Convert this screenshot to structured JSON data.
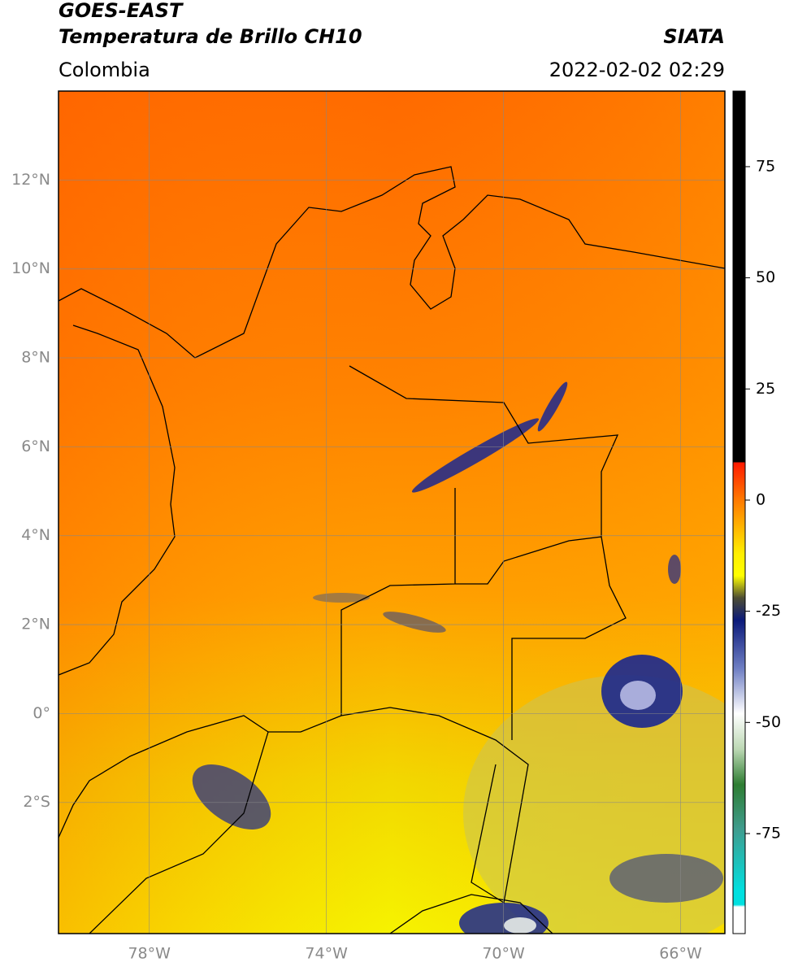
{
  "header": {
    "title": "GOES-EAST",
    "subtitle": "Temperatura de Brillo CH10",
    "region": "Colombia",
    "source": "SIATA",
    "datetime": "2022-02-02 02:29"
  },
  "map": {
    "lon_range": [
      -80.05,
      -65.0
    ],
    "lat_range": [
      -4.95,
      14.0
    ],
    "grid": true,
    "lat_ticks": [
      {
        "value": 12,
        "label": "12°N"
      },
      {
        "value": 10,
        "label": "10°N"
      },
      {
        "value": 8,
        "label": "8°N"
      },
      {
        "value": 6,
        "label": "6°N"
      },
      {
        "value": 4,
        "label": "4°N"
      },
      {
        "value": 2,
        "label": "2°N"
      },
      {
        "value": 0,
        "label": "0°"
      },
      {
        "value": -2,
        "label": "2°S"
      }
    ],
    "lon_ticks": [
      {
        "value": -78,
        "label": "78°W"
      },
      {
        "value": -74,
        "label": "74°W"
      },
      {
        "value": -70,
        "label": "70°W"
      },
      {
        "value": -66,
        "label": "66°W"
      }
    ]
  },
  "colorbar": {
    "range": [
      -97.5,
      92
    ],
    "ticks": [
      75,
      50,
      25,
      0,
      -25,
      -50,
      -75
    ],
    "stops": [
      {
        "value": 92,
        "color": "#000000"
      },
      {
        "value": 8.6,
        "color": "#000000"
      },
      {
        "value": 8.4,
        "color": "#ff1a00"
      },
      {
        "value": 0,
        "color": "#ff7a00"
      },
      {
        "value": -12,
        "color": "#ffee00"
      },
      {
        "value": -17,
        "color": "#ffff00"
      },
      {
        "value": -22,
        "color": "#4d4d33"
      },
      {
        "value": -27,
        "color": "#0b1a7a"
      },
      {
        "value": -38,
        "color": "#7080c4"
      },
      {
        "value": -48,
        "color": "#ffffff"
      },
      {
        "value": -56,
        "color": "#bcd8b4"
      },
      {
        "value": -64,
        "color": "#2e7d32"
      },
      {
        "value": -74,
        "color": "#3f9c8e"
      },
      {
        "value": -88,
        "color": "#00e0e0"
      },
      {
        "value": -91,
        "color": "#00e0e0"
      },
      {
        "value": -91.5,
        "color": "#ffffff"
      },
      {
        "value": -97.5,
        "color": "#ffffff"
      }
    ]
  }
}
